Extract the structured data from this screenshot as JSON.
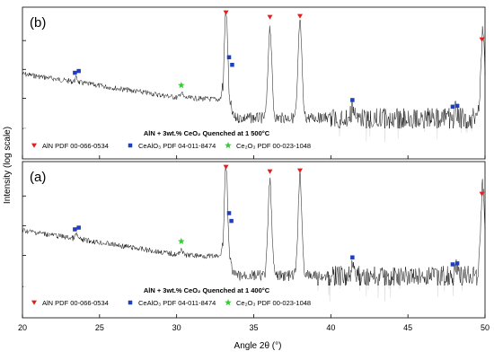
{
  "chart_data": {
    "type": "line",
    "xlabel": "Angle 2θ (°)",
    "ylabel": "Intensity (log scale)",
    "xlim": [
      20,
      50
    ],
    "x_ticks": [
      "20",
      "25",
      "30",
      "35",
      "40",
      "45",
      "50"
    ],
    "y_scale": "log",
    "colors": {
      "AlN": "#e02020",
      "CeAlO3": "#1f3fbf",
      "Ce2O3": "#33cc33",
      "trace": "#111111"
    },
    "panels": [
      {
        "label": "(b)",
        "legend_title": "AlN + 3wt.% CeO₂ Quenched at 1 500°C",
        "legend_entries": [
          {
            "key": "AlN",
            "marker": "triangle",
            "text": "AlN PDF 00-066-0534"
          },
          {
            "key": "CeAlO3",
            "marker": "square",
            "text": "CeAlO₃ PDF 04-011-8474"
          },
          {
            "key": "Ce2O3",
            "marker": "star",
            "text": "Ce₂O₃ PDF 00-023-1048"
          }
        ],
        "markers": {
          "AlN": [
            33.2,
            36.05,
            38.0,
            49.8
          ],
          "CeAlO3": [
            23.4,
            23.65,
            33.4,
            33.6,
            41.4,
            47.9,
            48.2
          ],
          "Ce2O3": [
            30.3
          ]
        },
        "peaks": [
          {
            "x": 23.5,
            "h": 0.06
          },
          {
            "x": 30.3,
            "h": 0.06
          },
          {
            "x": 33.2,
            "h": 1.0
          },
          {
            "x": 33.5,
            "h": 0.12
          },
          {
            "x": 36.05,
            "h": 0.85
          },
          {
            "x": 38.0,
            "h": 0.9
          },
          {
            "x": 41.4,
            "h": 0.1
          },
          {
            "x": 48.1,
            "h": 0.1
          },
          {
            "x": 49.85,
            "h": 0.8
          }
        ]
      },
      {
        "label": "(a)",
        "legend_title": "AlN + 3wt.% CeO₂ Quenched at 1 400°C",
        "legend_entries": [
          {
            "key": "AlN",
            "marker": "triangle",
            "text": "AlN PDF 00-066-0534"
          },
          {
            "key": "CeAlO3",
            "marker": "square",
            "text": "CeAlO₃ PDF 04-011-8474"
          },
          {
            "key": "Ce2O3",
            "marker": "star",
            "text": "Ce₂O₃ PDF 00-023-1048"
          }
        ],
        "markers": {
          "AlN": [
            33.2,
            36.05,
            38.0,
            49.8
          ],
          "CeAlO3": [
            23.4,
            23.65,
            33.4,
            33.55,
            41.4,
            47.9,
            48.2
          ],
          "Ce2O3": [
            30.3
          ]
        },
        "peaks": [
          {
            "x": 23.5,
            "h": 0.06
          },
          {
            "x": 30.3,
            "h": 0.07
          },
          {
            "x": 33.2,
            "h": 1.0
          },
          {
            "x": 33.5,
            "h": 0.12
          },
          {
            "x": 36.05,
            "h": 0.85
          },
          {
            "x": 38.0,
            "h": 0.9
          },
          {
            "x": 41.4,
            "h": 0.1
          },
          {
            "x": 48.1,
            "h": 0.1
          },
          {
            "x": 49.85,
            "h": 0.8
          }
        ]
      }
    ]
  }
}
